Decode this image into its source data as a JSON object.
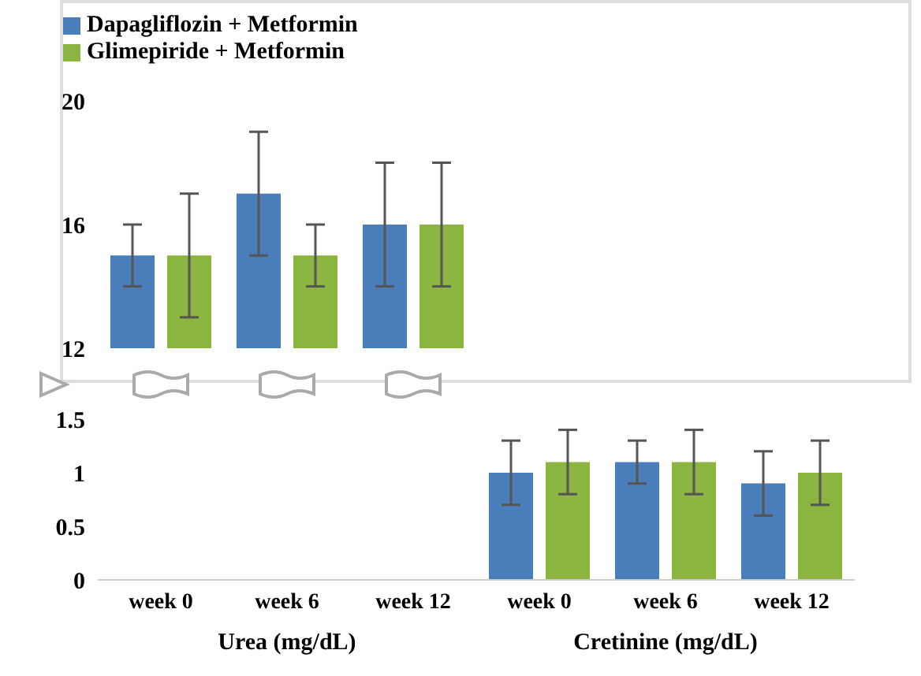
{
  "chart_data": [
    {
      "type": "bar",
      "categories": [
        null,
        null,
        null
      ],
      "series": [
        {
          "name": "Dapagliflozin + Metformin",
          "color": "#4a7ebb",
          "values": [
            15,
            17,
            16
          ],
          "errors": [
            1,
            2,
            2
          ]
        },
        {
          "name": "Glimepiride + Metformin",
          "color": "#8cb440",
          "values": [
            15,
            15,
            16
          ],
          "errors": [
            2,
            1,
            2
          ]
        }
      ],
      "ylim": [
        12,
        20
      ],
      "yticks": [
        12,
        16,
        20
      ],
      "legend": "top left",
      "tick_labels": "y",
      "grid": false
    },
    {
      "type": "bar",
      "categories": [
        "week 0",
        "week 6",
        "week 12",
        "week 0",
        "week 6",
        "week 12"
      ],
      "series": [
        {
          "color": "#4a7ebb",
          "values": [
            null,
            null,
            null,
            1.0,
            1.1,
            0.9
          ],
          "errors": [
            null,
            null,
            null,
            0.3,
            0.2,
            0.3
          ]
        },
        {
          "color": "#8cb440",
          "values": [
            null,
            null,
            null,
            1.1,
            1.1,
            1.0
          ],
          "errors": [
            null,
            null,
            null,
            0.3,
            0.3,
            0.3
          ]
        }
      ],
      "ylim": [
        0,
        1.5
      ],
      "yticks": [
        0,
        0.5,
        1,
        1.5
      ],
      "grid": false,
      "annotations": [
        "Urea (mg/dL)",
        "Cretinine (mg/dL)"
      ]
    }
  ]
}
